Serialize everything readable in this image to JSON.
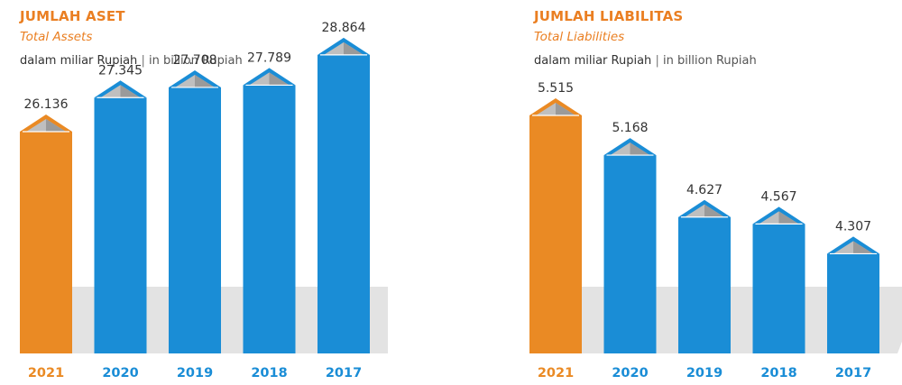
{
  "colors": {
    "highlight": "#ea8a24",
    "bar": "#1a8dd6",
    "bar_stroke": "#137dc4",
    "title": "#ea7f22",
    "shadow": "#dedede"
  },
  "panels": [
    {
      "title": "JUMLAH ASET",
      "subtitle": "Total Assets",
      "unit_id": "dalam miliar Rupiah",
      "unit_sep": "|",
      "unit_en": "in billion Rupiah"
    },
    {
      "title": "JUMLAH LIABILITAS",
      "subtitle": "Total Liabilities",
      "unit_id": "dalam miliar Rupiah",
      "unit_sep": "|",
      "unit_en": "in billion Rupiah"
    }
  ],
  "chart_data": [
    {
      "type": "bar",
      "title": "JUMLAH ASET",
      "subtitle": "Total Assets",
      "categories": [
        "2021",
        "2020",
        "2019",
        "2018",
        "2017"
      ],
      "values": [
        26136,
        27345,
        27708,
        27789,
        28864
      ],
      "labels": [
        "26.136",
        "27.345",
        "27.708",
        "27.789",
        "28.864"
      ],
      "highlight_index": 0,
      "ylim": [
        0,
        30000
      ],
      "grid": false
    },
    {
      "type": "bar",
      "title": "JUMLAH LIABILITAS",
      "subtitle": "Total Liabilities",
      "categories": [
        "2021",
        "2020",
        "2019",
        "2018",
        "2017"
      ],
      "values": [
        5515,
        5168,
        4627,
        4567,
        4307
      ],
      "labels": [
        "5.515",
        "5.168",
        "4.627",
        "4.567",
        "4.307"
      ],
      "highlight_index": 0,
      "ylim": [
        0,
        6000
      ],
      "grid": false
    }
  ]
}
